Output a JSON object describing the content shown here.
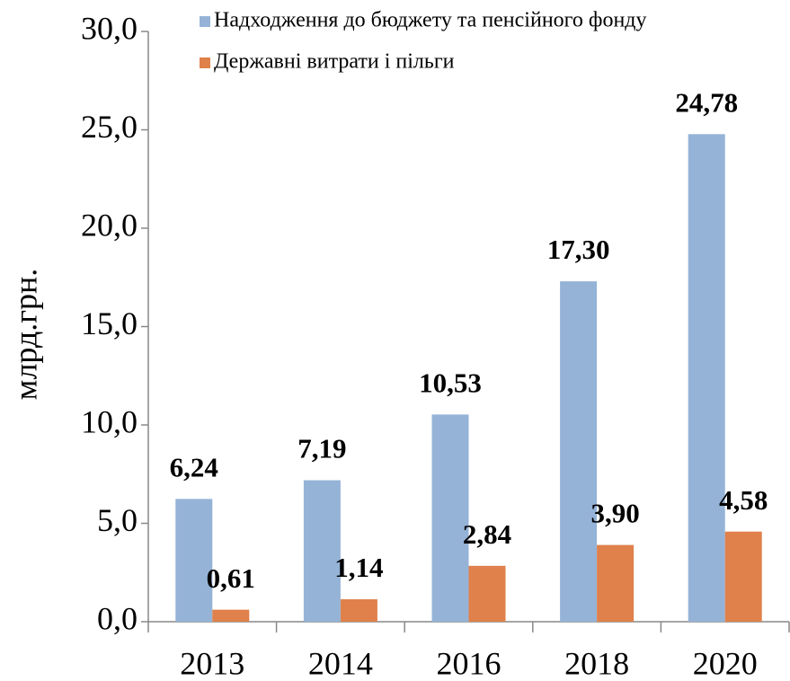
{
  "chart_data": {
    "type": "bar",
    "y_label": "млрд.грн.",
    "categories": [
      "2013",
      "2014",
      "2016",
      "2018",
      "2020"
    ],
    "series": [
      {
        "name": "Надходження до бюджету та пенсійного фонду",
        "color": "#95b3d7",
        "values": [
          6.24,
          7.19,
          10.53,
          17.3,
          24.78
        ],
        "value_labels": [
          "6,24",
          "7,19",
          "10,53",
          "17,30",
          "24,78"
        ]
      },
      {
        "name": "Державні витрати і пільги",
        "color": "#e0804a",
        "values": [
          0.61,
          1.14,
          2.84,
          3.9,
          4.58
        ],
        "value_labels": [
          "0,61",
          "1,14",
          "2,84",
          "3,90",
          "4,58"
        ]
      }
    ],
    "ylim": [
      0,
      30
    ],
    "yticks": [
      {
        "value": 0,
        "label": "0,0"
      },
      {
        "value": 5,
        "label": "5,0"
      },
      {
        "value": 10,
        "label": "10,0"
      },
      {
        "value": 15,
        "label": "15,0"
      },
      {
        "value": 20,
        "label": "20,0"
      },
      {
        "value": 25,
        "label": "25,0"
      },
      {
        "value": 30,
        "label": "30,0"
      }
    ],
    "legend": "top-right"
  }
}
